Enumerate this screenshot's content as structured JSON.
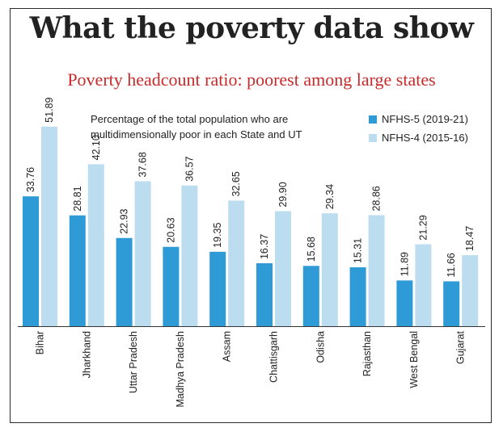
{
  "title": "What the poverty data show",
  "subtitle": "Poverty headcount ratio: poorest among large states",
  "note_lines": [
    "Percentage of the total population who are",
    "multidimensionally poor in each State and UT"
  ],
  "colors": {
    "nfhs5": "#2e9ad6",
    "nfhs4": "#bcdcf0",
    "text": "#222222",
    "accent": "#c62b2b"
  },
  "chart_data": {
    "type": "bar",
    "title": "Poverty headcount ratio: poorest among large states",
    "categories": [
      "Bihar",
      "Jharkhand",
      "Uttar Pradesh",
      "Madhya Pradesh",
      "Assam",
      "Chattisgarh",
      "Odisha",
      "Rajasthan",
      "West Bengal",
      "Gujarat"
    ],
    "series": [
      {
        "name": "NFHS-5 (2019-21)",
        "values": [
          33.76,
          28.81,
          22.93,
          20.63,
          19.35,
          16.37,
          15.68,
          15.31,
          11.89,
          11.66
        ],
        "labels": [
          "33.76",
          "28.81",
          "22.93",
          "20.63",
          "19.35",
          "16.37",
          "15.68",
          "15.31",
          "11.89",
          "11.66"
        ]
      },
      {
        "name": "NFHS-4 (2015-16)",
        "values": [
          51.89,
          42.1,
          37.68,
          36.57,
          32.65,
          29.9,
          29.34,
          28.86,
          21.29,
          18.47
        ],
        "labels": [
          "51.89",
          "42.10",
          "37.68",
          "36.57",
          "32.65",
          "29.90",
          "29.34",
          "28.86",
          "21.29",
          "18.47"
        ]
      }
    ],
    "ylim": [
      0,
      55
    ],
    "legend": "top-right",
    "grid": false
  }
}
